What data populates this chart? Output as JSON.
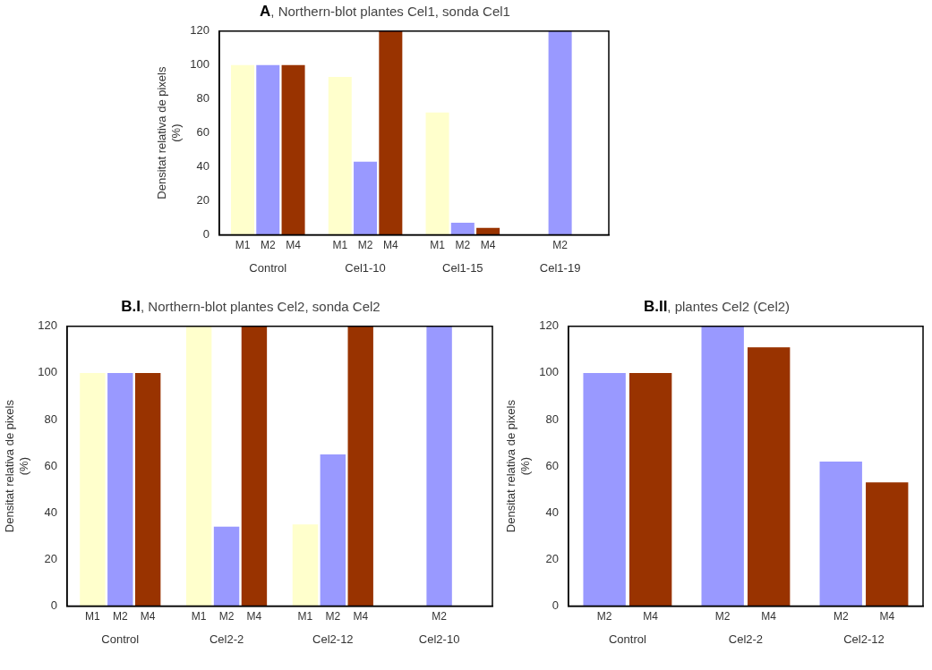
{
  "chart_data": [
    {
      "type": "bar",
      "title": "A, Northern-blot plantes Cel1, sonda Cel1",
      "ylabel": "Densitat relativa de pixels\n(%)",
      "categories": [
        "Control",
        "Cel1-10",
        "Cel1-15",
        "Cel1-19"
      ],
      "series": [
        {
          "name": "M1",
          "color": "#ffffcc",
          "values": [
            100,
            93,
            72,
            null
          ]
        },
        {
          "name": "M2",
          "color": "#9999ff",
          "values": [
            100,
            43,
            7,
            120
          ]
        },
        {
          "name": "M4",
          "color": "#993300",
          "values": [
            100,
            120,
            4,
            null
          ]
        }
      ],
      "ylim": [
        0,
        120
      ],
      "yticks": [
        0,
        20,
        40,
        60,
        80,
        100,
        120
      ],
      "grid": false
    },
    {
      "type": "bar",
      "title": "B.I, Northern-blot plantes Cel2, sonda Cel2",
      "ylabel": "Densitat relativa de pixels\n(%)",
      "categories": [
        "Control",
        "Cel2-2",
        "Cel2-12",
        "Cel2-10"
      ],
      "series": [
        {
          "name": "M1",
          "color": "#ffffcc",
          "values": [
            100,
            120,
            35,
            null
          ]
        },
        {
          "name": "M2",
          "color": "#9999ff",
          "values": [
            100,
            34,
            65,
            120
          ]
        },
        {
          "name": "M4",
          "color": "#993300",
          "values": [
            100,
            120,
            120,
            null
          ]
        }
      ],
      "ylim": [
        0,
        120
      ],
      "yticks": [
        0,
        20,
        40,
        60,
        80,
        100,
        120
      ],
      "grid": false
    },
    {
      "type": "bar",
      "title": "B.II, plantes Cel2 (Cel2)",
      "ylabel": "Densitat relativa de pixels\n(%)",
      "categories": [
        "Control",
        "Cel2-2",
        "Cel2-12"
      ],
      "series": [
        {
          "name": "M2",
          "color": "#9999ff",
          "values": [
            100,
            120,
            62
          ]
        },
        {
          "name": "M4",
          "color": "#993300",
          "values": [
            100,
            111,
            53
          ]
        }
      ],
      "ylim": [
        0,
        120
      ],
      "yticks": [
        0,
        20,
        40,
        60,
        80,
        100,
        120
      ],
      "grid": false
    }
  ]
}
